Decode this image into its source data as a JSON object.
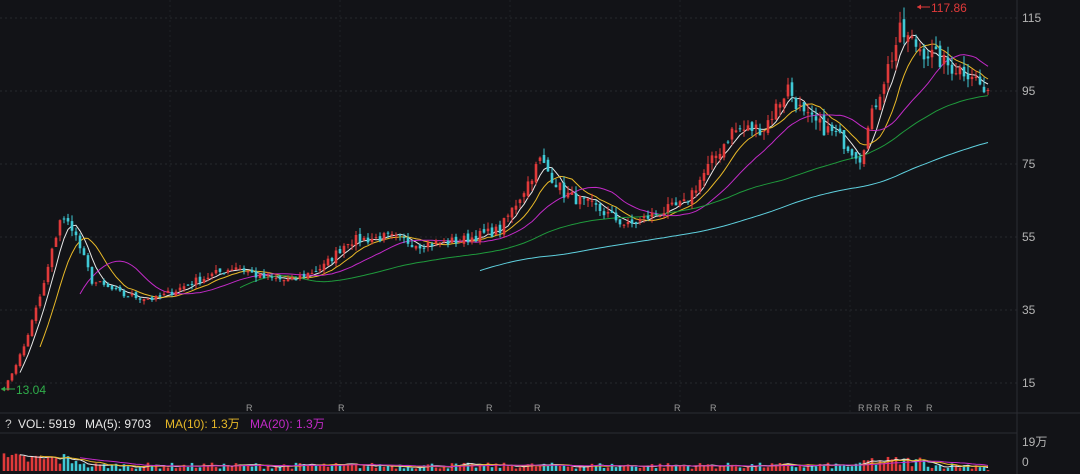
{
  "price_axis": {
    "ticks": [
      "115",
      "95",
      "75",
      "55",
      "35",
      "15"
    ]
  },
  "markers": {
    "high_label": "117.86",
    "low_label": "13.04"
  },
  "volume_legend": {
    "help_icon": "?",
    "vol_text": "VOL: 5919",
    "ma5_text": "MA(5): 9703",
    "ma10_text": "MA(10): 1.3万",
    "ma20_text": "MA(20): 1.3万"
  },
  "volume_axis": {
    "ticks": [
      "19万",
      "0"
    ]
  },
  "r_markers": [
    "R",
    "R",
    "R",
    "R",
    "R",
    "R",
    "R",
    "R",
    "R",
    "R",
    "R",
    "R",
    "R"
  ],
  "colors": {
    "background": "#121317",
    "up": "#e03a3a",
    "down": "#3fc9d6",
    "ma5": "#e8e8e8",
    "ma10": "#e8b928",
    "ma20": "#c22ac7",
    "ma60": "#1f9a3c",
    "ma120": "#5fd0de",
    "high_marker": "#e03a3a",
    "low_marker": "#2fae4a"
  },
  "chart_data": {
    "type": "candlestick",
    "y_range": [
      10,
      120
    ],
    "high": 117.86,
    "low": 13.04,
    "anchors": [
      [
        0,
        13.0
      ],
      [
        5,
        25.0
      ],
      [
        10,
        42.0
      ],
      [
        14,
        60.0
      ],
      [
        17,
        58.0
      ],
      [
        22,
        43.0
      ],
      [
        30,
        39.0
      ],
      [
        38,
        38.0
      ],
      [
        48,
        43.0
      ],
      [
        58,
        47.0
      ],
      [
        64,
        44.0
      ],
      [
        72,
        43.0
      ],
      [
        80,
        47.0
      ],
      [
        86,
        54.0
      ],
      [
        96,
        55.0
      ],
      [
        104,
        53.0
      ],
      [
        114,
        54.0
      ],
      [
        124,
        57.0
      ],
      [
        130,
        68.0
      ],
      [
        134,
        76.0
      ],
      [
        140,
        67.0
      ],
      [
        148,
        63.0
      ],
      [
        156,
        58.0
      ],
      [
        162,
        61.0
      ],
      [
        170,
        64.0
      ],
      [
        176,
        74.0
      ],
      [
        182,
        84.0
      ],
      [
        190,
        85.0
      ],
      [
        196,
        96.0
      ],
      [
        200,
        88.0
      ],
      [
        208,
        83.0
      ],
      [
        214,
        77.0
      ],
      [
        218,
        92.0
      ],
      [
        224,
        111.0
      ],
      [
        230,
        106.0
      ],
      [
        236,
        102.0
      ],
      [
        242,
        100.0
      ],
      [
        246,
        93.0
      ]
    ],
    "ma_periods": [
      5,
      10,
      20,
      60,
      120
    ],
    "volume_range": [
      0,
      190000
    ],
    "volume_last": 5919,
    "volume_ma5": 9703
  }
}
